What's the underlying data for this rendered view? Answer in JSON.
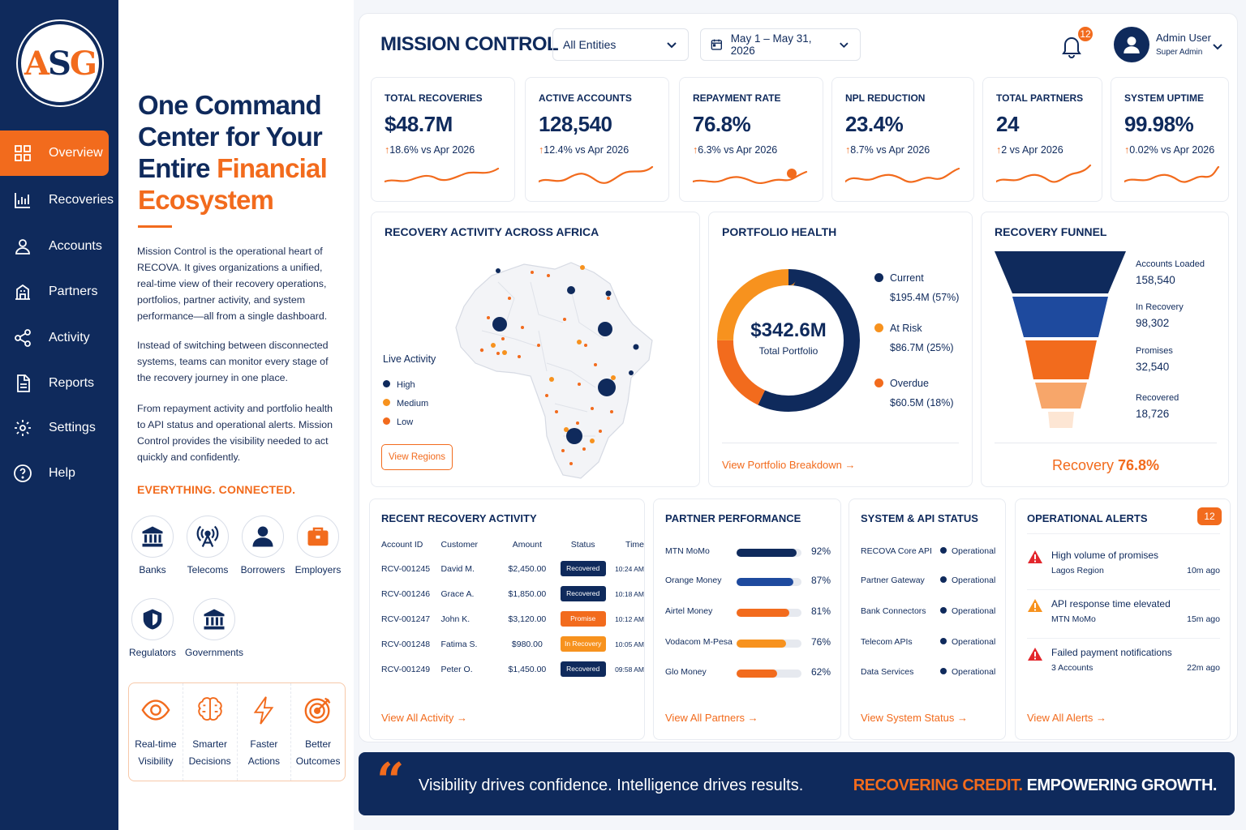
{
  "brand": {
    "logo_text_a": "A",
    "logo_text_s": "S",
    "logo_text_g": "G",
    "navy": "#0f2a5c",
    "orange": "#f26b1d"
  },
  "sidebar": {
    "items": [
      {
        "label": "Overview",
        "icon": "grid-icon",
        "active": true
      },
      {
        "label": "Recoveries",
        "icon": "bar-chart-icon"
      },
      {
        "label": "Accounts",
        "icon": "user-icon"
      },
      {
        "label": "Partners",
        "icon": "building-icon"
      },
      {
        "label": "Activity",
        "icon": "share-icon"
      },
      {
        "label": "Reports",
        "icon": "document-icon"
      },
      {
        "label": "Settings",
        "icon": "gear-icon"
      },
      {
        "label": "Help",
        "icon": "help-icon"
      }
    ]
  },
  "intro": {
    "headline_part1": "One Command Center for Your Entire ",
    "headline_part2": "Financial Ecosystem",
    "paragraphs": [
      "Mission Control is the operational heart of RECOVA. It gives organizations a unified, real-time view of their recovery operations, portfolios, partner activity, and system performance—all from a single dashboard.",
      "Instead of switching between disconnected systems, teams can monitor every stage of the recovery journey in one place.",
      "From repayment activity and portfolio health to API status and operational alerts. Mission Control provides the visibility needed to act quickly and confidently."
    ],
    "everything": "EVERYTHING. CONNECTED.",
    "ecosystem": [
      {
        "label": "Banks",
        "icon": "bank-icon"
      },
      {
        "label": "Telecoms",
        "icon": "antenna-icon"
      },
      {
        "label": "Borrowers",
        "icon": "person-icon"
      },
      {
        "label": "Employers",
        "icon": "briefcase-icon"
      },
      {
        "label": "Regulators",
        "icon": "shield-icon"
      },
      {
        "label": "Governments",
        "icon": "government-icon"
      }
    ],
    "benefits": [
      {
        "line1": "Real-time",
        "line2": "Visibility",
        "icon": "eye-icon"
      },
      {
        "line1": "Smarter",
        "line2": "Decisions",
        "icon": "brain-icon"
      },
      {
        "line1": "Faster",
        "line2": "Actions",
        "icon": "lightning-icon"
      },
      {
        "line1": "Better",
        "line2": "Outcomes",
        "icon": "target-icon"
      }
    ]
  },
  "header": {
    "title": "MISSION CONTROL",
    "entity_filter": "All Entities",
    "date_range": "May 1 – May 31, 2026",
    "notification_count": "12",
    "user_name": "Admin User",
    "user_role": "Super Admin"
  },
  "kpis": [
    {
      "label": "TOTAL RECOVERIES",
      "value": "$48.7M",
      "change": "18.6% vs Apr 2026"
    },
    {
      "label": "ACTIVE ACCOUNTS",
      "value": "128,540",
      "change": "12.4% vs Apr 2026"
    },
    {
      "label": "REPAYMENT RATE",
      "value": "76.8%",
      "change": "6.3% vs Apr 2026"
    },
    {
      "label": "NPL REDUCTION",
      "value": "23.4%",
      "change": "8.7% vs Apr 2026"
    },
    {
      "label": "TOTAL PARTNERS",
      "value": "24",
      "change": "2 vs Apr 2026"
    },
    {
      "label": "SYSTEM UPTIME",
      "value": "99.98%",
      "change": "0.02% vs Apr 2026"
    }
  ],
  "map": {
    "title": "RECOVERY ACTIVITY ACROSS AFRICA",
    "legend_title": "Live Activity",
    "legend": [
      {
        "label": "High",
        "color": "#0f2a5c"
      },
      {
        "label": "Medium",
        "color": "#f7921e"
      },
      {
        "label": "Low",
        "color": "#f26b1d"
      }
    ],
    "button": "View Regions"
  },
  "portfolio": {
    "title": "PORTFOLIO HEALTH",
    "total": "$342.6M",
    "total_label": "Total Portfolio",
    "segments": [
      {
        "label": "Current",
        "value": "$195.4M (57%)",
        "pct": 57,
        "color": "#0f2a5c"
      },
      {
        "label": "At Risk",
        "value": "$86.7M (25%)",
        "pct": 25,
        "color": "#f7921e"
      },
      {
        "label": "Overdue",
        "value": "$60.5M (18%)",
        "pct": 18,
        "color": "#f26b1d"
      }
    ],
    "link": "View Portfolio Breakdown"
  },
  "funnel": {
    "title": "RECOVERY FUNNEL",
    "stages": [
      {
        "label": "Accounts Loaded",
        "value": "158,540"
      },
      {
        "label": "In Recovery",
        "value": "98,302"
      },
      {
        "label": "Promises",
        "value": "32,540"
      },
      {
        "label": "Recovered",
        "value": "18,726"
      }
    ],
    "rate_label": "Recovery",
    "rate_value": "76.8%"
  },
  "recent": {
    "title": "RECENT RECOVERY ACTIVITY",
    "headers": [
      "Account ID",
      "Customer",
      "Amount",
      "Status",
      "Time"
    ],
    "rows": [
      {
        "id": "RCV-001245",
        "customer": "David M.",
        "amount": "$2,450.00",
        "status": "Recovered",
        "time": "10:24 AM",
        "color": "#0f2a5c"
      },
      {
        "id": "RCV-001246",
        "customer": "Grace A.",
        "amount": "$1,850.00",
        "status": "Recovered",
        "time": "10:18 AM",
        "color": "#0f2a5c"
      },
      {
        "id": "RCV-001247",
        "customer": "John K.",
        "amount": "$3,120.00",
        "status": "Promise",
        "time": "10:12 AM",
        "color": "#f26b1d"
      },
      {
        "id": "RCV-001248",
        "customer": "Fatima S.",
        "amount": "$980.00",
        "status": "In Recovery",
        "time": "10:05 AM",
        "color": "#f7921e"
      },
      {
        "id": "RCV-001249",
        "customer": "Peter O.",
        "amount": "$1,450.00",
        "status": "Recovered",
        "time": "09:58 AM",
        "color": "#0f2a5c"
      }
    ],
    "link": "View All Activity"
  },
  "partners": {
    "title": "PARTNER PERFORMANCE",
    "rows": [
      {
        "name": "MTN MoMo",
        "pct": 92,
        "label": "92%",
        "color": "#0f2a5c"
      },
      {
        "name": "Orange Money",
        "pct": 87,
        "label": "87%",
        "color": "#1e4a9e"
      },
      {
        "name": "Airtel Money",
        "pct": 81,
        "label": "81%",
        "color": "#f26b1d"
      },
      {
        "name": "Vodacom M-Pesa",
        "pct": 76,
        "label": "76%",
        "color": "#f7921e"
      },
      {
        "name": "Glo Money",
        "pct": 62,
        "label": "62%",
        "color": "#f26b1d"
      }
    ],
    "link": "View All Partners"
  },
  "system": {
    "title": "SYSTEM & API STATUS",
    "rows": [
      {
        "name": "RECOVA Core API",
        "status": "Operational"
      },
      {
        "name": "Partner Gateway",
        "status": "Operational"
      },
      {
        "name": "Bank Connectors",
        "status": "Operational"
      },
      {
        "name": "Telecom APIs",
        "status": "Operational"
      },
      {
        "name": "Data Services",
        "status": "Operational"
      }
    ],
    "link": "View System Status"
  },
  "alerts": {
    "title": "OPERATIONAL ALERTS",
    "count": "12",
    "rows": [
      {
        "title": "High volume of promises",
        "sub": "Lagos Region",
        "ago": "10m ago",
        "color": "#e3262c"
      },
      {
        "title": "API response time elevated",
        "sub": "MTN MoMo",
        "ago": "15m ago",
        "color": "#f7921e"
      },
      {
        "title": "Failed payment notifications",
        "sub": "3 Accounts",
        "ago": "22m ago",
        "color": "#e3262c"
      }
    ],
    "link": "View All Alerts"
  },
  "banner": {
    "quote_mark": "“",
    "quote": "Visibility drives confidence. Intelligence drives results.",
    "tag_part1": "RECOVERING CREDIT.",
    "tag_part2": " EMPOWERING GROWTH."
  }
}
